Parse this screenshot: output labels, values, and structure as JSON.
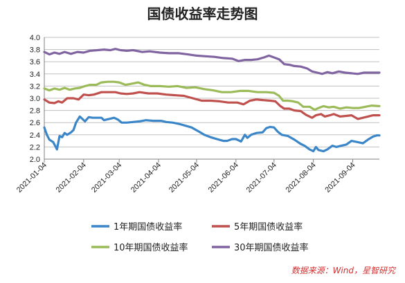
{
  "chart_data": {
    "type": "line",
    "title": "国债收益率走势图",
    "xlabel": "",
    "ylabel": "",
    "ylim": [
      2.0,
      4.0
    ],
    "ystep": 0.2,
    "y_tick_labels": [
      "2.0",
      "2.2",
      "2.4",
      "2.6",
      "2.8",
      "3.0",
      "3.2",
      "3.4",
      "3.6",
      "3.8",
      "4.0"
    ],
    "xlim": [
      "2021-01-04",
      "2021-09-25"
    ],
    "x_tick_labels": [
      "2021-01-04",
      "2021-02-04",
      "2021-03-04",
      "2021-04-04",
      "2021-05-04",
      "2021-06-04",
      "2021-07-04",
      "2021-08-04",
      "2021-09-04"
    ],
    "grid": "horizontal",
    "legend_position": "bottom",
    "source_text": "数据来源：Wind，星智研究",
    "series": [
      {
        "name": "1年期国债收益率",
        "color": "#3a86c8",
        "points": [
          [
            "2021-01-04",
            2.52
          ],
          [
            "2021-01-06",
            2.4
          ],
          [
            "2021-01-08",
            2.32
          ],
          [
            "2021-01-11",
            2.28
          ],
          [
            "2021-01-13",
            2.2
          ],
          [
            "2021-01-14",
            2.16
          ],
          [
            "2021-01-16",
            2.38
          ],
          [
            "2021-01-18",
            2.36
          ],
          [
            "2021-01-20",
            2.43
          ],
          [
            "2021-01-22",
            2.4
          ],
          [
            "2021-01-25",
            2.44
          ],
          [
            "2021-01-27",
            2.48
          ],
          [
            "2021-01-29",
            2.6
          ],
          [
            "2021-02-01",
            2.7
          ],
          [
            "2021-02-03",
            2.66
          ],
          [
            "2021-02-05",
            2.62
          ],
          [
            "2021-02-08",
            2.69
          ],
          [
            "2021-02-11",
            2.68
          ],
          [
            "2021-02-18",
            2.68
          ],
          [
            "2021-02-20",
            2.64
          ],
          [
            "2021-02-24",
            2.66
          ],
          [
            "2021-02-28",
            2.68
          ],
          [
            "2021-03-03",
            2.65
          ],
          [
            "2021-03-06",
            2.6
          ],
          [
            "2021-03-10",
            2.6
          ],
          [
            "2021-03-15",
            2.61
          ],
          [
            "2021-03-20",
            2.62
          ],
          [
            "2021-03-25",
            2.64
          ],
          [
            "2021-03-31",
            2.63
          ],
          [
            "2021-04-06",
            2.63
          ],
          [
            "2021-04-10",
            2.61
          ],
          [
            "2021-04-15",
            2.6
          ],
          [
            "2021-04-20",
            2.58
          ],
          [
            "2021-04-25",
            2.55
          ],
          [
            "2021-04-30",
            2.52
          ],
          [
            "2021-05-06",
            2.45
          ],
          [
            "2021-05-10",
            2.4
          ],
          [
            "2021-05-15",
            2.36
          ],
          [
            "2021-05-20",
            2.33
          ],
          [
            "2021-05-25",
            2.3
          ],
          [
            "2021-05-28",
            2.3
          ],
          [
            "2021-06-01",
            2.33
          ],
          [
            "2021-06-04",
            2.33
          ],
          [
            "2021-06-08",
            2.29
          ],
          [
            "2021-06-11",
            2.4
          ],
          [
            "2021-06-13",
            2.35
          ],
          [
            "2021-06-16",
            2.4
          ],
          [
            "2021-06-20",
            2.43
          ],
          [
            "2021-06-25",
            2.44
          ],
          [
            "2021-06-28",
            2.51
          ],
          [
            "2021-07-01",
            2.53
          ],
          [
            "2021-07-04",
            2.52
          ],
          [
            "2021-07-07",
            2.45
          ],
          [
            "2021-07-10",
            2.4
          ],
          [
            "2021-07-15",
            2.38
          ],
          [
            "2021-07-20",
            2.32
          ],
          [
            "2021-07-25",
            2.25
          ],
          [
            "2021-07-28",
            2.22
          ],
          [
            "2021-08-01",
            2.16
          ],
          [
            "2021-08-04",
            2.13
          ],
          [
            "2021-08-06",
            2.2
          ],
          [
            "2021-08-08",
            2.15
          ],
          [
            "2021-08-12",
            2.13
          ],
          [
            "2021-08-15",
            2.16
          ],
          [
            "2021-08-19",
            2.22
          ],
          [
            "2021-08-22",
            2.2
          ],
          [
            "2021-08-26",
            2.22
          ],
          [
            "2021-08-30",
            2.24
          ],
          [
            "2021-09-03",
            2.3
          ],
          [
            "2021-09-08",
            2.28
          ],
          [
            "2021-09-12",
            2.26
          ],
          [
            "2021-09-16",
            2.32
          ],
          [
            "2021-09-20",
            2.37
          ],
          [
            "2021-09-23",
            2.39
          ],
          [
            "2021-09-25",
            2.39
          ]
        ]
      },
      {
        "name": "5年期国债收益率",
        "color": "#c0504d",
        "points": [
          [
            "2021-01-04",
            2.98
          ],
          [
            "2021-01-08",
            2.93
          ],
          [
            "2021-01-12",
            2.92
          ],
          [
            "2021-01-15",
            2.95
          ],
          [
            "2021-01-18",
            2.93
          ],
          [
            "2021-01-22",
            3.0
          ],
          [
            "2021-01-27",
            3.0
          ],
          [
            "2021-01-31",
            2.98
          ],
          [
            "2021-02-04",
            3.06
          ],
          [
            "2021-02-08",
            3.05
          ],
          [
            "2021-02-12",
            3.06
          ],
          [
            "2021-02-18",
            3.1
          ],
          [
            "2021-02-25",
            3.1
          ],
          [
            "2021-03-01",
            3.1
          ],
          [
            "2021-03-05",
            3.08
          ],
          [
            "2021-03-10",
            3.07
          ],
          [
            "2021-03-15",
            3.08
          ],
          [
            "2021-03-20",
            3.1
          ],
          [
            "2021-03-27",
            3.08
          ],
          [
            "2021-04-03",
            3.08
          ],
          [
            "2021-04-10",
            3.06
          ],
          [
            "2021-04-17",
            3.05
          ],
          [
            "2021-04-24",
            3.04
          ],
          [
            "2021-05-01",
            3.0
          ],
          [
            "2021-05-08",
            2.96
          ],
          [
            "2021-05-15",
            2.96
          ],
          [
            "2021-05-22",
            2.95
          ],
          [
            "2021-05-29",
            2.93
          ],
          [
            "2021-06-05",
            2.93
          ],
          [
            "2021-06-10",
            2.9
          ],
          [
            "2021-06-15",
            2.96
          ],
          [
            "2021-06-20",
            2.98
          ],
          [
            "2021-06-25",
            2.97
          ],
          [
            "2021-07-01",
            2.96
          ],
          [
            "2021-07-05",
            2.95
          ],
          [
            "2021-07-09",
            2.87
          ],
          [
            "2021-07-12",
            2.83
          ],
          [
            "2021-07-16",
            2.83
          ],
          [
            "2021-07-20",
            2.8
          ],
          [
            "2021-07-25",
            2.79
          ],
          [
            "2021-07-29",
            2.73
          ],
          [
            "2021-08-03",
            2.68
          ],
          [
            "2021-08-06",
            2.72
          ],
          [
            "2021-08-10",
            2.74
          ],
          [
            "2021-08-13",
            2.7
          ],
          [
            "2021-08-17",
            2.72
          ],
          [
            "2021-08-20",
            2.74
          ],
          [
            "2021-08-25",
            2.7
          ],
          [
            "2021-08-30",
            2.71
          ],
          [
            "2021-09-03",
            2.72
          ],
          [
            "2021-09-08",
            2.66
          ],
          [
            "2021-09-12",
            2.68
          ],
          [
            "2021-09-16",
            2.7
          ],
          [
            "2021-09-20",
            2.72
          ],
          [
            "2021-09-25",
            2.72
          ]
        ]
      },
      {
        "name": "10年期国债收益率",
        "color": "#9bbb59",
        "points": [
          [
            "2021-01-04",
            3.16
          ],
          [
            "2021-01-08",
            3.13
          ],
          [
            "2021-01-12",
            3.16
          ],
          [
            "2021-01-16",
            3.14
          ],
          [
            "2021-01-20",
            3.17
          ],
          [
            "2021-01-24",
            3.14
          ],
          [
            "2021-01-28",
            3.16
          ],
          [
            "2021-02-01",
            3.17
          ],
          [
            "2021-02-05",
            3.2
          ],
          [
            "2021-02-09",
            3.22
          ],
          [
            "2021-02-14",
            3.22
          ],
          [
            "2021-02-18",
            3.26
          ],
          [
            "2021-02-23",
            3.27
          ],
          [
            "2021-02-28",
            3.27
          ],
          [
            "2021-03-04",
            3.26
          ],
          [
            "2021-03-09",
            3.22
          ],
          [
            "2021-03-14",
            3.24
          ],
          [
            "2021-03-19",
            3.26
          ],
          [
            "2021-03-24",
            3.22
          ],
          [
            "2021-03-29",
            3.2
          ],
          [
            "2021-04-05",
            3.2
          ],
          [
            "2021-04-12",
            3.19
          ],
          [
            "2021-04-19",
            3.2
          ],
          [
            "2021-04-26",
            3.17
          ],
          [
            "2021-05-03",
            3.18
          ],
          [
            "2021-05-10",
            3.15
          ],
          [
            "2021-05-17",
            3.13
          ],
          [
            "2021-05-24",
            3.1
          ],
          [
            "2021-05-31",
            3.1
          ],
          [
            "2021-06-07",
            3.12
          ],
          [
            "2021-06-14",
            3.12
          ],
          [
            "2021-06-21",
            3.1
          ],
          [
            "2021-06-28",
            3.1
          ],
          [
            "2021-07-04",
            3.09
          ],
          [
            "2021-07-08",
            3.04
          ],
          [
            "2021-07-11",
            2.96
          ],
          [
            "2021-07-15",
            2.96
          ],
          [
            "2021-07-19",
            2.95
          ],
          [
            "2021-07-23",
            2.93
          ],
          [
            "2021-07-27",
            2.86
          ],
          [
            "2021-08-01",
            2.86
          ],
          [
            "2021-08-05",
            2.81
          ],
          [
            "2021-08-08",
            2.84
          ],
          [
            "2021-08-12",
            2.87
          ],
          [
            "2021-08-16",
            2.85
          ],
          [
            "2021-08-20",
            2.86
          ],
          [
            "2021-08-25",
            2.83
          ],
          [
            "2021-08-30",
            2.85
          ],
          [
            "2021-09-04",
            2.84
          ],
          [
            "2021-09-09",
            2.84
          ],
          [
            "2021-09-14",
            2.86
          ],
          [
            "2021-09-19",
            2.88
          ],
          [
            "2021-09-25",
            2.87
          ]
        ]
      },
      {
        "name": "30年期国债收益率",
        "color": "#8064a2",
        "points": [
          [
            "2021-01-04",
            3.76
          ],
          [
            "2021-01-08",
            3.72
          ],
          [
            "2021-01-12",
            3.75
          ],
          [
            "2021-01-16",
            3.73
          ],
          [
            "2021-01-20",
            3.76
          ],
          [
            "2021-01-25",
            3.73
          ],
          [
            "2021-01-30",
            3.76
          ],
          [
            "2021-02-04",
            3.75
          ],
          [
            "2021-02-09",
            3.78
          ],
          [
            "2021-02-15",
            3.79
          ],
          [
            "2021-02-20",
            3.8
          ],
          [
            "2021-02-25",
            3.79
          ],
          [
            "2021-03-01",
            3.81
          ],
          [
            "2021-03-05",
            3.79
          ],
          [
            "2021-03-10",
            3.78
          ],
          [
            "2021-03-15",
            3.79
          ],
          [
            "2021-03-22",
            3.76
          ],
          [
            "2021-03-28",
            3.77
          ],
          [
            "2021-04-05",
            3.75
          ],
          [
            "2021-04-12",
            3.74
          ],
          [
            "2021-04-20",
            3.74
          ],
          [
            "2021-04-27",
            3.72
          ],
          [
            "2021-05-04",
            3.7
          ],
          [
            "2021-05-11",
            3.69
          ],
          [
            "2021-05-18",
            3.68
          ],
          [
            "2021-05-25",
            3.66
          ],
          [
            "2021-06-01",
            3.65
          ],
          [
            "2021-06-06",
            3.61
          ],
          [
            "2021-06-11",
            3.63
          ],
          [
            "2021-06-16",
            3.63
          ],
          [
            "2021-06-21",
            3.64
          ],
          [
            "2021-06-26",
            3.67
          ],
          [
            "2021-06-30",
            3.7
          ],
          [
            "2021-07-04",
            3.67
          ],
          [
            "2021-07-08",
            3.64
          ],
          [
            "2021-07-12",
            3.56
          ],
          [
            "2021-07-16",
            3.55
          ],
          [
            "2021-07-20",
            3.53
          ],
          [
            "2021-07-25",
            3.52
          ],
          [
            "2021-07-30",
            3.49
          ],
          [
            "2021-08-03",
            3.44
          ],
          [
            "2021-08-07",
            3.42
          ],
          [
            "2021-08-11",
            3.4
          ],
          [
            "2021-08-15",
            3.43
          ],
          [
            "2021-08-19",
            3.41
          ],
          [
            "2021-08-24",
            3.44
          ],
          [
            "2021-08-29",
            3.42
          ],
          [
            "2021-09-03",
            3.41
          ],
          [
            "2021-09-08",
            3.4
          ],
          [
            "2021-09-13",
            3.42
          ],
          [
            "2021-09-18",
            3.42
          ],
          [
            "2021-09-25",
            3.42
          ]
        ]
      }
    ]
  }
}
